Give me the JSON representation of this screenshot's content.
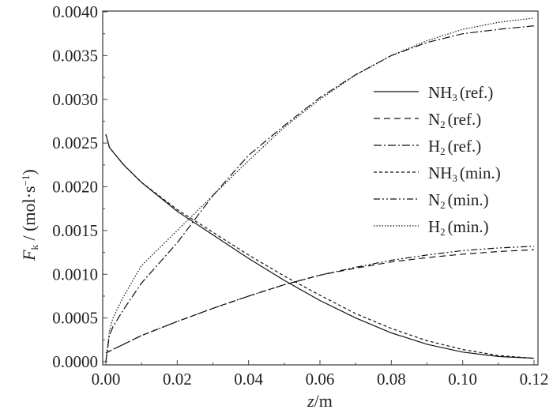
{
  "chart_data": {
    "type": "line",
    "title": "",
    "xlabel_italic": "z",
    "xlabel_rest": "/m",
    "ylabel_italic": "F",
    "ylabel_sub": "k",
    "ylabel_rest": " / (mol·s",
    "ylabel_sup": "−1",
    "ylabel_close": ")",
    "xlim": [
      0,
      0.12
    ],
    "ylim": [
      0,
      0.004
    ],
    "xticks": [
      "0.00",
      "0.02",
      "0.04",
      "0.06",
      "0.08",
      "0.10",
      "0.12"
    ],
    "yticks": [
      "0.0000",
      "0.0005",
      "0.0010",
      "0.0015",
      "0.0020",
      "0.0025",
      "0.0030",
      "0.0035",
      "0.0040"
    ],
    "grid": false,
    "legend_placement": "right",
    "x": [
      0,
      0.001,
      0.002,
      0.005,
      0.01,
      0.02,
      0.03,
      0.04,
      0.05,
      0.06,
      0.07,
      0.08,
      0.09,
      0.1,
      0.11,
      0.12
    ],
    "series": [
      {
        "name": "NH",
        "sub": "3",
        "suffix": "(ref.)",
        "dash": "",
        "values": [
          0.0026,
          0.00245,
          0.0024,
          0.00225,
          0.00205,
          0.00172,
          0.00145,
          0.00118,
          0.00093,
          0.0007,
          0.0005,
          0.00033,
          0.0002,
          0.00011,
          6e-05,
          4e-05
        ]
      },
      {
        "name": "N",
        "sub": "2",
        "suffix": "(ref.)",
        "dash": "8,5",
        "values": [
          0.0001,
          0.00012,
          0.00014,
          0.0002,
          0.0003,
          0.00046,
          0.00061,
          0.00075,
          0.00088,
          0.00099,
          0.00107,
          0.00114,
          0.00119,
          0.00123,
          0.00126,
          0.00128
        ]
      },
      {
        "name": "H",
        "sub": "2",
        "suffix": "(ref.)",
        "dash": "10,3,2,3",
        "values": [
          0,
          0.0003,
          0.0004,
          0.0006,
          0.0009,
          0.00136,
          0.0019,
          0.00236,
          0.0027,
          0.00302,
          0.00328,
          0.0035,
          0.00365,
          0.00375,
          0.0038,
          0.00384
        ]
      },
      {
        "name": "NH",
        "sub": "3",
        "suffix": "(min.)",
        "dash": "4,3",
        "values": [
          0.0026,
          0.00245,
          0.0024,
          0.00225,
          0.00205,
          0.00174,
          0.00148,
          0.00122,
          0.00098,
          0.00076,
          0.00055,
          0.00038,
          0.00024,
          0.00014,
          7e-05,
          4e-05
        ]
      },
      {
        "name": "N",
        "sub": "2",
        "suffix": "(min.)",
        "dash": "8,3,2,3,2,3",
        "values": [
          0.0001,
          0.00012,
          0.00014,
          0.0002,
          0.0003,
          0.00046,
          0.00061,
          0.00075,
          0.00088,
          0.00099,
          0.00108,
          0.00116,
          0.00122,
          0.00127,
          0.0013,
          0.00132
        ]
      },
      {
        "name": "H",
        "sub": "2",
        "suffix": "(min.)",
        "dash": "1.5,2",
        "values": [
          0,
          0.00035,
          0.0005,
          0.00075,
          0.0011,
          0.0015,
          0.0019,
          0.0023,
          0.00268,
          0.003,
          0.00328,
          0.0035,
          0.00367,
          0.0038,
          0.00388,
          0.00393
        ]
      }
    ]
  }
}
